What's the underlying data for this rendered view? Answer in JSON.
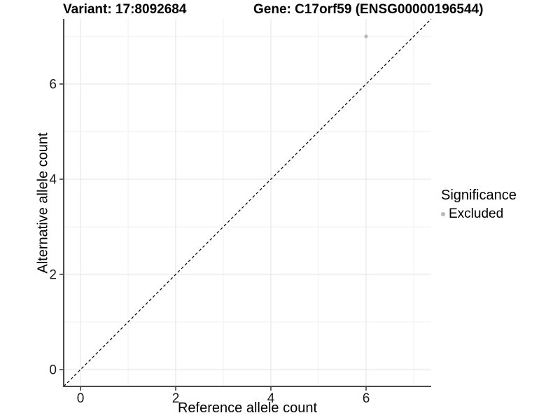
{
  "chart_data": {
    "type": "scatter",
    "title_left": "Variant: 17:8092684",
    "title_right": "Gene: C17orf59 (ENSG00000196544)",
    "xlabel": "Reference allele count",
    "ylabel": "Alternative allele count",
    "xlim": [
      -0.353,
      7.368
    ],
    "ylim": [
      -0.353,
      7.368
    ],
    "x_major_ticks": [
      0,
      2,
      4,
      6
    ],
    "y_major_ticks": [
      0,
      2,
      4,
      6
    ],
    "x_minor_ticks": [
      1,
      3,
      5,
      7
    ],
    "y_minor_ticks": [
      1,
      3,
      5,
      7
    ],
    "x_tick_labels": [
      "0",
      "2",
      "4",
      "6"
    ],
    "y_tick_labels": [
      "0",
      "2",
      "4",
      "6"
    ],
    "grid": true,
    "points": [
      {
        "x": 6,
        "y": 7,
        "series": "Excluded"
      }
    ],
    "reference_line": {
      "style": "dashed",
      "intercept": 0,
      "slope": 1,
      "color": "#000000"
    },
    "legend": {
      "title": "Significance",
      "position": "right",
      "items": [
        {
          "label": "Excluded",
          "color": "#b8b8b8"
        }
      ]
    },
    "colors": {
      "point": "#b8b8b8",
      "grid_major": "#e3e3e3",
      "grid_minor": "#f1f1f1",
      "axis_line": "#4a4a4a",
      "tick_mark": "#333333",
      "tick_label": "#1a1a1a",
      "background": "#ffffff"
    }
  }
}
